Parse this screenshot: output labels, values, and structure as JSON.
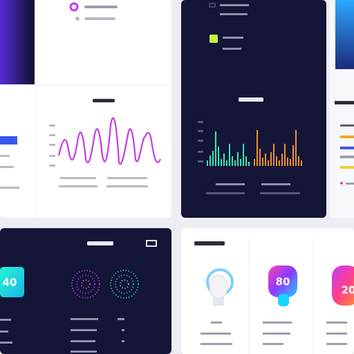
{
  "tiles": [
    {
      "value": "40"
    },
    {
      "value": "80"
    },
    {
      "value": "20"
    }
  ]
}
